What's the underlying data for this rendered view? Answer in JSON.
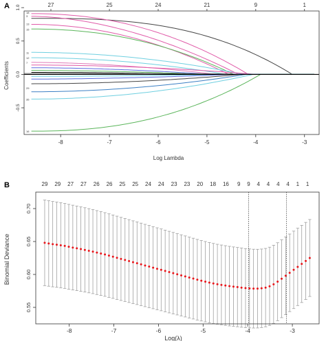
{
  "panel_a": {
    "label": "A",
    "top_axis_labels": [
      "27",
      "25",
      "24",
      "21",
      "9",
      "1"
    ],
    "xlabel": "Log Lambda",
    "ylabel": "Coefficients",
    "x_ticks": [
      "-8",
      "-7",
      "-6",
      "-5",
      "-4",
      "-3"
    ],
    "y_ticks": [
      "1.0",
      "0.5",
      "0.0",
      "-0.5"
    ],
    "small_labels": [
      "18",
      "3",
      "13",
      "15",
      "11",
      "12",
      "7",
      "29",
      "35",
      "16"
    ]
  },
  "panel_b": {
    "label": "B",
    "top_axis_labels": [
      "29",
      "29",
      "27",
      "27",
      "26",
      "26",
      "25",
      "25",
      "24",
      "24",
      "23",
      "23",
      "20",
      "18",
      "16",
      "9",
      "9",
      "4",
      "4",
      "4",
      "4",
      "1",
      "1"
    ],
    "xlabel": "Log(λ)",
    "ylabel": "Binomial Deviance",
    "x_ticks": [
      "-8",
      "-7",
      "-6",
      "-5",
      "-4",
      "-3"
    ],
    "y_ticks": [
      "0.55",
      "0.60",
      "0.65",
      "0.70"
    ]
  },
  "colors": {
    "point": "#e8161b",
    "errorbar": "#a0a0a0",
    "axis": "#333333",
    "vline": "#444444"
  },
  "chart_data": [
    {
      "type": "line",
      "xlim": [
        -8.75,
        -2.7
      ],
      "ylim": [
        -0.9,
        0.95
      ],
      "vlines": [],
      "top_ticks": [
        {
          "x": -8.2,
          "label": "27"
        },
        {
          "x": -7.0,
          "label": "25"
        },
        {
          "x": -6.0,
          "label": "24"
        },
        {
          "x": -5.0,
          "label": "21"
        },
        {
          "x": -4.0,
          "label": "9"
        },
        {
          "x": -3.0,
          "label": "1"
        }
      ],
      "series": [
        {
          "color": "#444444",
          "start": 0.84,
          "end_x": -3.25,
          "shape": 1.6
        },
        {
          "color": "#e05aa8",
          "start": 0.91,
          "end_x": -4.15,
          "shape": 1.2
        },
        {
          "color": "#e05aa8",
          "start": 0.87,
          "end_x": -4.35,
          "shape": 1.0
        },
        {
          "color": "#e05aa8",
          "start": 0.75,
          "end_x": -4.55,
          "shape": 1.1
        },
        {
          "color": "#5ab55a",
          "start": 0.68,
          "end_x": -4.45,
          "shape": 1.2
        },
        {
          "color": "#6ecfe0",
          "start": 0.33,
          "end_x": -4.25,
          "shape": 1.1
        },
        {
          "color": "#6ecfe0",
          "start": 0.25,
          "end_x": -4.6,
          "shape": 1.1
        },
        {
          "color": "#e07ab8",
          "start": 0.18,
          "end_x": -4.8,
          "shape": 1.0
        },
        {
          "color": "#e05aa8",
          "start": 0.14,
          "end_x": -4.0,
          "shape": 1.1
        },
        {
          "color": "#5a6be0",
          "start": 0.1,
          "end_x": -4.9,
          "shape": 1.0
        },
        {
          "color": "#5ab55a",
          "start": 0.06,
          "end_x": -5.0,
          "shape": 1.0
        },
        {
          "color": "#000000",
          "start": 0.03,
          "end_x": -5.2,
          "shape": 1.0
        },
        {
          "color": "#6ecfe0",
          "start": -0.03,
          "end_x": -4.7,
          "shape": 1.0
        },
        {
          "color": "#5a6be0",
          "start": -0.07,
          "end_x": -4.5,
          "shape": 1.0
        },
        {
          "color": "#444444",
          "start": -0.14,
          "end_x": -4.3,
          "shape": 1.1
        },
        {
          "color": "#3b7fc4",
          "start": -0.26,
          "end_x": -4.2,
          "shape": 1.1
        },
        {
          "color": "#6ecfe0",
          "start": -0.37,
          "end_x": -4.05,
          "shape": 1.1
        },
        {
          "color": "#5ab55a",
          "start": -0.85,
          "end_x": -3.9,
          "shape": 1.3
        }
      ]
    },
    {
      "type": "scatter",
      "xlim": [
        -8.75,
        -2.4
      ],
      "ylim": [
        0.525,
        0.725
      ],
      "vlines": [
        -3.98,
        -3.13
      ],
      "top_ticks": [
        {
          "x": -8.55,
          "label": "29"
        },
        {
          "x": -8.26,
          "label": "29"
        },
        {
          "x": -7.97,
          "label": "27"
        },
        {
          "x": -7.68,
          "label": "27"
        },
        {
          "x": -7.39,
          "label": "26"
        },
        {
          "x": -7.1,
          "label": "26"
        },
        {
          "x": -6.81,
          "label": "25"
        },
        {
          "x": -6.52,
          "label": "25"
        },
        {
          "x": -6.23,
          "label": "24"
        },
        {
          "x": -5.94,
          "label": "24"
        },
        {
          "x": -5.65,
          "label": "23"
        },
        {
          "x": -5.36,
          "label": "23"
        },
        {
          "x": -5.07,
          "label": "20"
        },
        {
          "x": -4.78,
          "label": "18"
        },
        {
          "x": -4.49,
          "label": "16"
        },
        {
          "x": -4.2,
          "label": "9"
        },
        {
          "x": -3.98,
          "label": "9"
        },
        {
          "x": -3.76,
          "label": "4"
        },
        {
          "x": -3.54,
          "label": "4"
        },
        {
          "x": -3.32,
          "label": "4"
        },
        {
          "x": -3.1,
          "label": "4"
        },
        {
          "x": -2.88,
          "label": "1"
        },
        {
          "x": -2.66,
          "label": "1"
        }
      ],
      "x": [
        -8.55,
        -8.46,
        -8.37,
        -8.28,
        -8.19,
        -8.1,
        -8.01,
        -7.92,
        -7.83,
        -7.74,
        -7.65,
        -7.56,
        -7.47,
        -7.38,
        -7.29,
        -7.2,
        -7.11,
        -7.02,
        -6.93,
        -6.84,
        -6.75,
        -6.66,
        -6.57,
        -6.48,
        -6.39,
        -6.3,
        -6.21,
        -6.12,
        -6.03,
        -5.94,
        -5.85,
        -5.76,
        -5.67,
        -5.58,
        -5.49,
        -5.4,
        -5.31,
        -5.22,
        -5.13,
        -5.04,
        -4.95,
        -4.86,
        -4.77,
        -4.68,
        -4.59,
        -4.5,
        -4.41,
        -4.32,
        -4.23,
        -4.14,
        -4.05,
        -3.96,
        -3.87,
        -3.78,
        -3.69,
        -3.6,
        -3.51,
        -3.42,
        -3.33,
        -3.24,
        -3.15,
        -3.06,
        -2.97,
        -2.88,
        -2.79,
        -2.7,
        -2.61
      ],
      "values": [
        0.648,
        0.647,
        0.646,
        0.6452,
        0.6443,
        0.6433,
        0.642,
        0.6408,
        0.6397,
        0.6385,
        0.6373,
        0.636,
        0.6347,
        0.6332,
        0.6318,
        0.6303,
        0.6286,
        0.627,
        0.6253,
        0.6236,
        0.622,
        0.6203,
        0.6186,
        0.617,
        0.6153,
        0.6136,
        0.612,
        0.6103,
        0.6086,
        0.607,
        0.6053,
        0.6036,
        0.602,
        0.6003,
        0.5986,
        0.597,
        0.5953,
        0.5937,
        0.592,
        0.5905,
        0.589,
        0.5876,
        0.5863,
        0.5851,
        0.5841,
        0.5832,
        0.5823,
        0.5815,
        0.5808,
        0.58,
        0.5793,
        0.5788,
        0.5785,
        0.5785,
        0.579,
        0.58,
        0.582,
        0.585,
        0.589,
        0.5935,
        0.598,
        0.6025,
        0.607,
        0.6115,
        0.616,
        0.6205,
        0.625
      ],
      "error": [
        0.065,
        0.0649,
        0.0648,
        0.0647,
        0.0646,
        0.0645,
        0.0644,
        0.0643,
        0.0642,
        0.0641,
        0.064,
        0.0639,
        0.0638,
        0.0637,
        0.0636,
        0.0635,
        0.0634,
        0.0633,
        0.0632,
        0.0631,
        0.063,
        0.0629,
        0.0628,
        0.0627,
        0.0626,
        0.0625,
        0.0624,
        0.0623,
        0.0622,
        0.0621,
        0.062,
        0.0619,
        0.0618,
        0.0617,
        0.0616,
        0.0615,
        0.0614,
        0.0613,
        0.0612,
        0.0611,
        0.061,
        0.0609,
        0.0608,
        0.0607,
        0.0606,
        0.0605,
        0.0604,
        0.0603,
        0.0602,
        0.0601,
        0.06,
        0.0599,
        0.0598,
        0.0597,
        0.0596,
        0.0595,
        0.0594,
        0.0593,
        0.0592,
        0.0591,
        0.059,
        0.0589,
        0.0588,
        0.0587,
        0.0586,
        0.0585,
        0.0584
      ]
    }
  ]
}
